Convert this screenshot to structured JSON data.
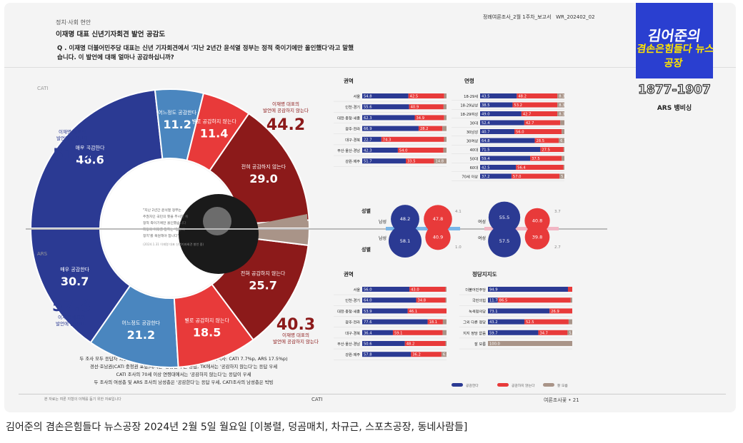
{
  "header": {
    "category": "정치·사회 현안",
    "title": "이재명 대표 신년기자회견 발언 공감도",
    "report": "정례여론조사_2월 1주차_보고서",
    "report_code": "WR_202402_02",
    "question": "Q . 이재명 더불어민주당 대표는 신년 기자회견에서 '지난 2년간 윤석열 정부는 정적 죽이기에만 올인했다'라고 말했습니다. 이 발언에 대해 얼마나 공감하십니까?"
  },
  "logo": {
    "line1": "김어준의",
    "line2": "겸손은힘들다 뉴스공장",
    "phone": "1877-1907",
    "ars": "ARS 뱅비싱"
  },
  "colors": {
    "agree_strong": "#2b3a93",
    "agree_some": "#4a86bf",
    "disagree_some": "#e83a3a",
    "disagree_strong": "#8c1a1a",
    "unknown": "#a99488"
  },
  "chart_data": [
    {
      "type": "pie",
      "title": "CATI",
      "categories": [
        "매우 공감한다",
        "어느정도 공감한다",
        "별로 공감하지 않는다",
        "전혀 공감하지 않는다",
        "잘 모름"
      ],
      "values": [
        30.7,
        21.2,
        18.5,
        25.7,
        3.9
      ],
      "totals": [
        {
          "label": "이재명 대표의 발언에 공감한다",
          "value": "51.9"
        },
        {
          "label": "이재명 대표의 발언에 공감하지 않는다",
          "value": "44.2"
        }
      ]
    },
    {
      "type": "pie",
      "title": "ARS",
      "categories": [
        "매우 공감한다",
        "어느정도 공감한다",
        "별로 공감하지 않는다",
        "전혀 공감하지 않는다",
        "잘 모름"
      ],
      "values": [
        46.6,
        11.2,
        11.4,
        29.0,
        1.9
      ],
      "totals": [
        {
          "label": "이재명 대표의 발언에 공감한다",
          "value": "57.8"
        },
        {
          "label": "이재명 대표의 발언에 공감하지 않는다",
          "value": "40.3"
        }
      ]
    },
    {
      "type": "bar",
      "title": "권역",
      "stacked": true,
      "categories": [
        "서울",
        "인천·경기",
        "대전·충청·세종",
        "광주·전라",
        "대구·경북",
        "부산·울산·경남",
        "강원·제주"
      ],
      "series": [
        {
          "name": "공감한다",
          "values": [
            54.8,
            55.6,
            62.3,
            66.9,
            22.7,
            42.3,
            51.7
          ]
        },
        {
          "name": "공감하지 않는다",
          "values": [
            42.5,
            40.9,
            34.9,
            28.2,
            74.3,
            54.0,
            33.5
          ]
        },
        {
          "name": "잘 모름",
          "values": [
            2.7,
            3.5,
            2.8,
            4.9,
            3.0,
            3.7,
            14.8
          ]
        }
      ],
      "labels": [
        "54.8",
        "42.5",
        "",
        "55.6",
        "40.9",
        "",
        "62.3",
        "34.9",
        "",
        "66.9",
        "28.2",
        "",
        "22.7",
        "74.3",
        "",
        "42.3",
        "54.0",
        "",
        "51.7",
        "33.5",
        "14.8"
      ]
    },
    {
      "type": "bar",
      "title": "연령",
      "stacked": true,
      "categories": [
        "18-29세",
        "18-29남성",
        "18-29여성",
        "30대",
        "30남성",
        "30여성",
        "40대",
        "50대",
        "60대",
        "70세 이상"
      ],
      "series": [
        {
          "name": "공감한다",
          "values": [
            43.5,
            38.5,
            49.0,
            52.4,
            40.7,
            64.8,
            71.5,
            59.4,
            42.5,
            37.2
          ]
        },
        {
          "name": "공감하지 않는다",
          "values": [
            48.2,
            53.2,
            42.7,
            42.7,
            56.0,
            28.5,
            27.5,
            37.5,
            56.4,
            57.0
          ]
        },
        {
          "name": "잘 모름",
          "values": [
            8.3,
            8.3,
            8.3,
            4.9,
            3.3,
            6.7,
            1.0,
            3.1,
            1.1,
            5.8
          ]
        }
      ],
      "labels": [
        "43.5",
        "48.2",
        "8.3",
        "38.5",
        "53.2",
        "8.3",
        "49.0",
        "42.7",
        "8.3",
        "52.4",
        "42.7",
        "",
        "40.7",
        "56.0",
        "",
        "64.8",
        "28.5",
        "6.7",
        "71.5",
        "27.5",
        "",
        "59.4",
        "37.5",
        "",
        "42.5",
        "56.4",
        "",
        "37.2",
        "57.0",
        "5.8"
      ]
    },
    {
      "type": "bubble",
      "title": "성별",
      "categories": [
        "남성 (CATI)",
        "남성 (ARS)",
        "여성 (CATI)",
        "여성 (ARS)"
      ],
      "series": [
        {
          "name": "공감한다",
          "values": [
            48.2,
            58.1,
            55.5,
            57.5
          ]
        },
        {
          "name": "공감하지 않는다",
          "values": [
            47.8,
            40.9,
            40.8,
            39.8
          ]
        },
        {
          "name": "잘 모름",
          "values": [
            4.1,
            1.0,
            3.7,
            2.7
          ]
        }
      ],
      "row_labels": [
        "남성",
        "남성",
        "여성",
        "여성"
      ],
      "panel_labels": [
        "성별",
        "성별"
      ]
    },
    {
      "type": "bar",
      "title": "권역",
      "stacked": true,
      "categories": [
        "서울",
        "인천·경기",
        "대전·충청·세종",
        "광주·전라",
        "대구·경북",
        "부산·울산·경남",
        "강원·제주"
      ],
      "series": [
        {
          "name": "공감한다",
          "values": [
            56.0,
            64.0,
            53.9,
            77.6,
            36.4,
            50.6,
            57.8
          ]
        },
        {
          "name": "공감하지 않는다",
          "values": [
            43.0,
            34.8,
            46.1,
            18.1,
            59.1,
            48.2,
            36.2
          ]
        },
        {
          "name": "잘 모름",
          "values": [
            1.0,
            1.2,
            0.0,
            4.3,
            4.5,
            1.2,
            6.0
          ]
        }
      ],
      "labels": [
        "56.0",
        "43.0",
        "",
        "64.0",
        "34.8",
        "",
        "53.9",
        "46.1",
        "",
        "77.6",
        "18.1",
        "",
        "36.4",
        "59.1",
        "",
        "50.6",
        "48.2",
        "",
        "57.8",
        "36.2",
        "6.0"
      ]
    },
    {
      "type": "bar",
      "title": "정당지지도",
      "stacked": true,
      "categories": [
        "더불어민주당",
        "국민의힘",
        "녹색정의당",
        "그외 다른 정당",
        "지지 정당 없음",
        "잘 모름"
      ],
      "series": [
        {
          "name": "공감한다",
          "values": [
            94.9,
            11.7,
            73.1,
            43.2,
            59.7,
            0
          ]
        },
        {
          "name": "공감하지 않는다",
          "values": [
            5.1,
            86.5,
            26.9,
            52.5,
            34.7,
            0
          ]
        },
        {
          "name": "잘 모름",
          "values": [
            0,
            1.8,
            0,
            4.3,
            5.6,
            100.0
          ]
        }
      ],
      "labels": [
        "94.9",
        "",
        "",
        "11.7",
        "86.5",
        "",
        "73.1",
        "26.9",
        "",
        "43.2",
        "52.5",
        "",
        "59.7",
        "34.7",
        "5.6",
        "",
        "",
        "100.0"
      ]
    }
  ],
  "pie_labels": {
    "cati": [
      "매우 공감한다",
      "어느정도 공감한다",
      "별로 공감하지 않는다",
      "전혀 공감하지 않는다",
      "잘 모름"
    ],
    "ars": [
      "매우 공감한다",
      "어느정도 공감한다",
      "별로 공감하지 않는다",
      "전혀 공감하지 않는다",
      "잘 모름"
    ]
  },
  "center_quote": "\"지난 2년간 윤석열 정부는 주권자인 국민의 뜻을 무시한 채 정적 죽이기에만 올인했습니다 희망과 미래를 말하는 '일할의 정치'를 복원해야 합니다\"",
  "center_source": "(2024.1.31 이재명 대표 신년기자회견 발언 중)",
  "summary": [
    "두 조사 모두 응답자 과반 이상이 '이재명 대표 발언에 공감한다'고 응답 (격차: CATI 7.7%p, ARS 17.5%p)",
    "경선·호남권(CATI 충청권 포함)에서는 '공감한다'는 응답, TK에서는 '공감하지 않는다'는 응답 우세",
    "CATI 조사의 70세 이상 연령대에서는 '공감하지 않는다'는 응답이 우세",
    "두 조사의 여성층 및 ARS 조사의 남성층은 '공감한다'는 응답 우세, CATI조사의 남성층은 박빙"
  ],
  "legend": [
    "공감한다",
    "공감하지 않는다",
    "잘 모름"
  ],
  "footer": {
    "source": "본 자료는 여론 지형의 이해를 돕기 위한 자료입니다",
    "category": "CATI",
    "page": "여론조사꽃 • 21"
  },
  "caption": "김어준의 겸손은힘들다 뉴스공장 2024년 2월 5일 월요일 [이봉렬, 덩곰매치, 차규근, 스포츠공장, 동네사람들]"
}
